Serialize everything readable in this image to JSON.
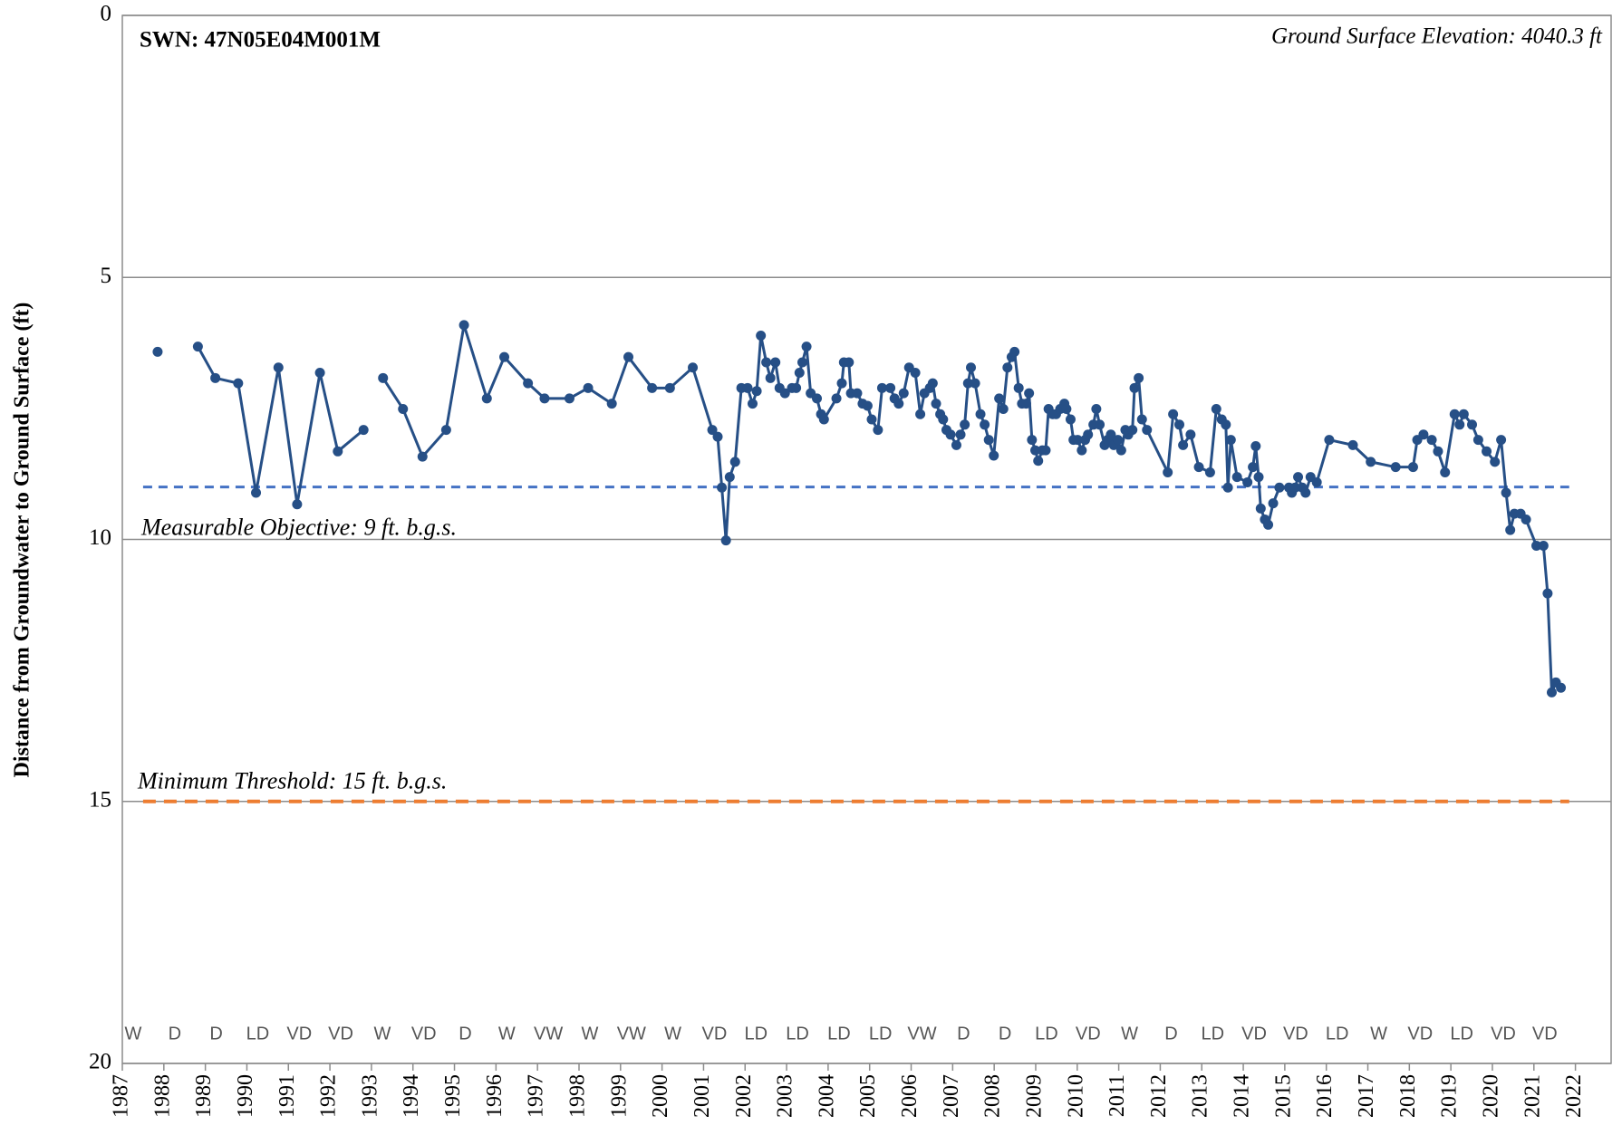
{
  "chart_data": {
    "type": "line",
    "title": "SWN: 47N05E04M001M",
    "subtitle": "Ground Surface Elevation: 4040.3 ft",
    "y_label": "Distance from Groundwater to Ground Surface (ft)",
    "ylim": [
      0,
      20
    ],
    "yticks": [
      0,
      5,
      10,
      15,
      20
    ],
    "y_inverted": true,
    "xlim": [
      1987,
      2022.86
    ],
    "xticks": [
      1987,
      1988,
      1989,
      1990,
      1991,
      1992,
      1993,
      1994,
      1995,
      1996,
      1997,
      1998,
      1999,
      2000,
      2001,
      2002,
      2003,
      2004,
      2005,
      2006,
      2007,
      2008,
      2009,
      2010,
      2011,
      2012,
      2013,
      2014,
      2015,
      2016,
      2017,
      2018,
      2019,
      2020,
      2021,
      2022
    ],
    "grid": true,
    "year_types": [
      "W",
      "D",
      "D",
      "LD",
      "VD",
      "VD",
      "W",
      "VD",
      "D",
      "W",
      "VW",
      "W",
      "VW",
      "W",
      "VD",
      "LD",
      "LD",
      "LD",
      "LD",
      "VW",
      "D",
      "D",
      "LD",
      "VD",
      "W",
      "D",
      "LD",
      "VD",
      "VD",
      "LD",
      "W",
      "VD",
      "LD",
      "VD",
      "VD"
    ],
    "reference_lines": [
      {
        "label": "Measurable Objective: 9 ft. b.g.s.",
        "value": 9,
        "color": "#4472c4"
      },
      {
        "label": "Minimum Threshold: 15 ft. b.g.s.",
        "value": 15,
        "color": "#ed7d31"
      }
    ],
    "series": [
      {
        "color": "#264f86",
        "x": [
          1987.85,
          null,
          1988.82,
          1989.24,
          1989.79,
          1990.22,
          1990.76,
          1991.21,
          1991.76,
          1992.19,
          1992.81,
          null,
          1993.28,
          1993.76,
          1994.23,
          1994.8,
          1995.23,
          1995.78,
          1996.2,
          1996.77,
          1997.17,
          1997.77,
          1998.22,
          1998.79,
          1999.19,
          1999.76,
          2000.19,
          2000.74,
          2001.21,
          2001.34,
          2001.44,
          2001.54,
          2001.63,
          2001.76,
          2001.91,
          2002.06,
          2002.18,
          2002.28,
          2002.38,
          2002.51,
          2002.61,
          2002.73,
          2002.83,
          2002.96,
          2003.13,
          2003.23,
          2003.31,
          2003.38,
          2003.48,
          2003.58,
          2003.73,
          2003.83,
          2003.9,
          2004.2,
          2004.33,
          2004.38,
          2004.5,
          2004.55,
          2004.7,
          2004.83,
          2004.95,
          2005.05,
          2005.2,
          2005.3,
          2005.5,
          2005.6,
          2005.7,
          2005.82,
          2005.95,
          2006.1,
          2006.22,
          2006.32,
          2006.45,
          2006.52,
          2006.6,
          2006.7,
          2006.77,
          2006.85,
          2006.95,
          2007.09,
          2007.19,
          2007.29,
          2007.37,
          2007.44,
          2007.54,
          2007.67,
          2007.77,
          2007.87,
          2007.99,
          2008.12,
          2008.22,
          2008.32,
          2008.42,
          2008.49,
          2008.59,
          2008.67,
          2008.77,
          2008.84,
          2008.91,
          2008.99,
          2009.06,
          2009.16,
          2009.24,
          2009.31,
          2009.41,
          2009.49,
          2009.59,
          2009.69,
          2009.74,
          2009.84,
          2009.91,
          2010.01,
          2010.11,
          2010.19,
          2010.26,
          2010.39,
          2010.46,
          2010.54,
          2010.66,
          2010.73,
          2010.81,
          2010.88,
          2010.98,
          2011.06,
          2011.16,
          2011.23,
          2011.33,
          2011.38,
          2011.48,
          2011.56,
          2011.68,
          2012.18,
          2012.31,
          2012.46,
          2012.55,
          2012.73,
          2012.93,
          2013.2,
          2013.35,
          2013.48,
          2013.58,
          2013.63,
          2013.7,
          2013.85,
          2014.1,
          2014.23,
          2014.3,
          2014.37,
          2014.42,
          2014.52,
          2014.6,
          2014.72,
          2014.87,
          2015.1,
          2015.17,
          2015.25,
          2015.32,
          2015.42,
          2015.5,
          2015.62,
          2015.77,
          2016.07,
          2016.64,
          2017.07,
          2017.67,
          2018.09,
          2018.19,
          2018.34,
          2018.54,
          2018.69,
          2018.86,
          2019.09,
          2019.21,
          2019.31,
          2019.51,
          2019.66,
          2019.86,
          2020.06,
          2020.21,
          2020.33,
          2020.43,
          2020.53,
          2020.68,
          2020.81,
          2021.06,
          2021.23,
          2021.33,
          2021.43,
          2021.53,
          2021.65
        ],
        "values": [
          6.42,
          null,
          6.32,
          6.92,
          7.02,
          9.11,
          6.72,
          9.33,
          6.82,
          8.32,
          7.91,
          null,
          6.92,
          7.51,
          8.42,
          7.91,
          5.91,
          7.31,
          6.52,
          7.02,
          7.31,
          7.31,
          7.11,
          7.41,
          6.52,
          7.11,
          7.11,
          6.72,
          7.91,
          8.04,
          9.01,
          10.02,
          8.81,
          8.52,
          7.11,
          7.11,
          7.41,
          7.17,
          6.11,
          6.62,
          6.92,
          6.62,
          7.11,
          7.21,
          7.11,
          7.11,
          6.82,
          6.62,
          6.32,
          7.21,
          7.31,
          7.61,
          7.71,
          7.31,
          7.02,
          6.62,
          6.62,
          7.21,
          7.21,
          7.41,
          7.45,
          7.71,
          7.91,
          7.11,
          7.11,
          7.31,
          7.41,
          7.21,
          6.72,
          6.82,
          7.61,
          7.21,
          7.11,
          7.02,
          7.41,
          7.61,
          7.71,
          7.91,
          8.0,
          8.2,
          8.0,
          7.81,
          7.02,
          6.72,
          7.02,
          7.61,
          7.81,
          8.1,
          8.4,
          7.31,
          7.51,
          6.72,
          6.52,
          6.42,
          7.11,
          7.41,
          7.41,
          7.21,
          8.1,
          8.3,
          8.5,
          8.3,
          8.3,
          7.51,
          7.61,
          7.61,
          7.51,
          7.41,
          7.51,
          7.71,
          8.1,
          8.1,
          8.3,
          8.1,
          8.0,
          7.81,
          7.51,
          7.81,
          8.2,
          8.1,
          8.0,
          8.2,
          8.1,
          8.3,
          7.91,
          8.0,
          7.91,
          7.11,
          6.92,
          7.71,
          7.91,
          8.72,
          7.61,
          7.81,
          8.2,
          8.0,
          8.62,
          8.72,
          7.51,
          7.71,
          7.81,
          9.01,
          8.1,
          8.81,
          8.91,
          8.62,
          8.22,
          8.81,
          9.41,
          9.62,
          9.72,
          9.31,
          9.01,
          9.01,
          9.11,
          9.01,
          8.81,
          9.01,
          9.11,
          8.81,
          8.91,
          8.1,
          8.2,
          8.52,
          8.62,
          8.62,
          8.1,
          8.0,
          8.1,
          8.32,
          8.72,
          7.61,
          7.81,
          7.61,
          7.81,
          8.1,
          8.32,
          8.52,
          8.1,
          9.11,
          9.82,
          9.51,
          9.51,
          9.62,
          10.12,
          10.12,
          11.03,
          12.92,
          12.73,
          12.83
        ]
      }
    ]
  }
}
